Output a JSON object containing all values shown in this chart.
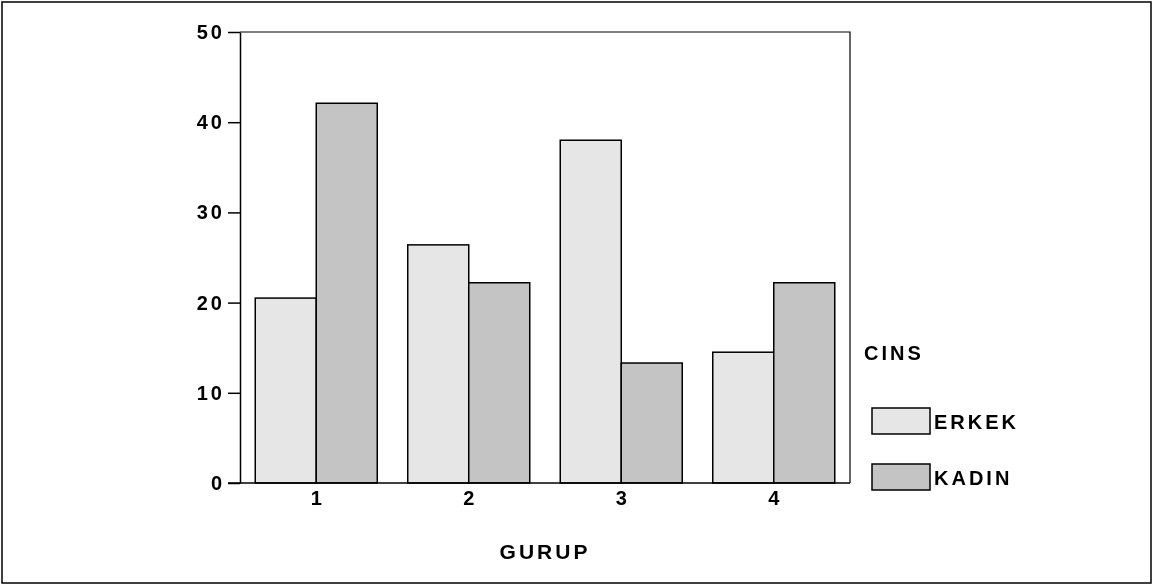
{
  "chart_data": {
    "type": "bar",
    "xlabel": "GURUP",
    "legend_title": "CINS",
    "categories": [
      "1",
      "2",
      "3",
      "4"
    ],
    "series": [
      {
        "name": "ERKEK",
        "color": "#e6e6e6",
        "values": [
          20.5,
          26.4,
          38.0,
          14.5
        ]
      },
      {
        "name": "KADIN",
        "color": "#c4c4c4",
        "values": [
          42.1,
          22.2,
          13.3,
          22.2
        ]
      }
    ],
    "ylim": [
      0,
      50
    ],
    "yticks": [
      0,
      10,
      20,
      30,
      40,
      50
    ],
    "grid": false,
    "legend": "right"
  }
}
